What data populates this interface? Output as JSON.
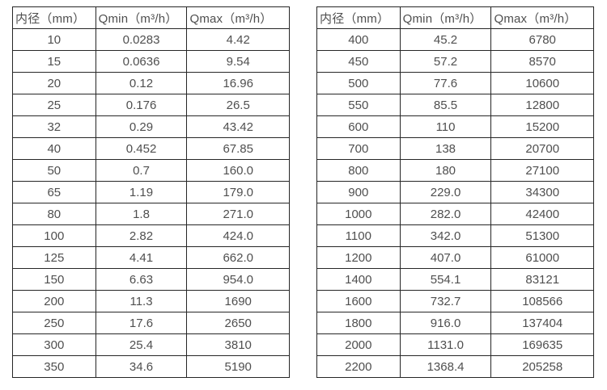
{
  "colors": {
    "background": "#ffffff",
    "border": "#262626",
    "text": "#4f4f4f"
  },
  "tables": [
    {
      "name": "small-diameters",
      "headers": [
        "内径（mm）",
        "Qmin（m³/h）",
        "Qmax（m³/h）"
      ],
      "rows": [
        [
          "10",
          "0.0283",
          "4.42"
        ],
        [
          "15",
          "0.0636",
          "9.54"
        ],
        [
          "20",
          "0.12",
          "16.96"
        ],
        [
          "25",
          "0.176",
          "26.5"
        ],
        [
          "32",
          "0.29",
          "43.42"
        ],
        [
          "40",
          "0.452",
          "67.85"
        ],
        [
          "50",
          "0.7",
          "160.0"
        ],
        [
          "65",
          "1.19",
          "179.0"
        ],
        [
          "80",
          "1.8",
          "271.0"
        ],
        [
          "100",
          "2.82",
          "424.0"
        ],
        [
          "125",
          "4.41",
          "662.0"
        ],
        [
          "150",
          "6.63",
          "954.0"
        ],
        [
          "200",
          "11.3",
          "1690"
        ],
        [
          "250",
          "17.6",
          "2650"
        ],
        [
          "300",
          "25.4",
          "3810"
        ],
        [
          "350",
          "34.6",
          "5190"
        ]
      ]
    },
    {
      "name": "large-diameters",
      "headers": [
        "内径（mm）",
        "Qmin（m³/h）",
        "Qmax（m³/h）"
      ],
      "rows": [
        [
          "400",
          "45.2",
          "6780"
        ],
        [
          "450",
          "57.2",
          "8570"
        ],
        [
          "500",
          "77.6",
          "10600"
        ],
        [
          "550",
          "85.5",
          "12800"
        ],
        [
          "600",
          "110",
          "15200"
        ],
        [
          "700",
          "138",
          "20700"
        ],
        [
          "800",
          "180",
          "27100"
        ],
        [
          "900",
          "229.0",
          "34300"
        ],
        [
          "1000",
          "282.0",
          "42400"
        ],
        [
          "1100",
          "342.0",
          "51300"
        ],
        [
          "1200",
          "407.0",
          "61000"
        ],
        [
          "1400",
          "554.1",
          "83121"
        ],
        [
          "1600",
          "732.7",
          "108566"
        ],
        [
          "1800",
          "916.0",
          "137404"
        ],
        [
          "2000",
          "1131.0",
          "169635"
        ],
        [
          "2200",
          "1368.4",
          "205258"
        ]
      ]
    }
  ]
}
